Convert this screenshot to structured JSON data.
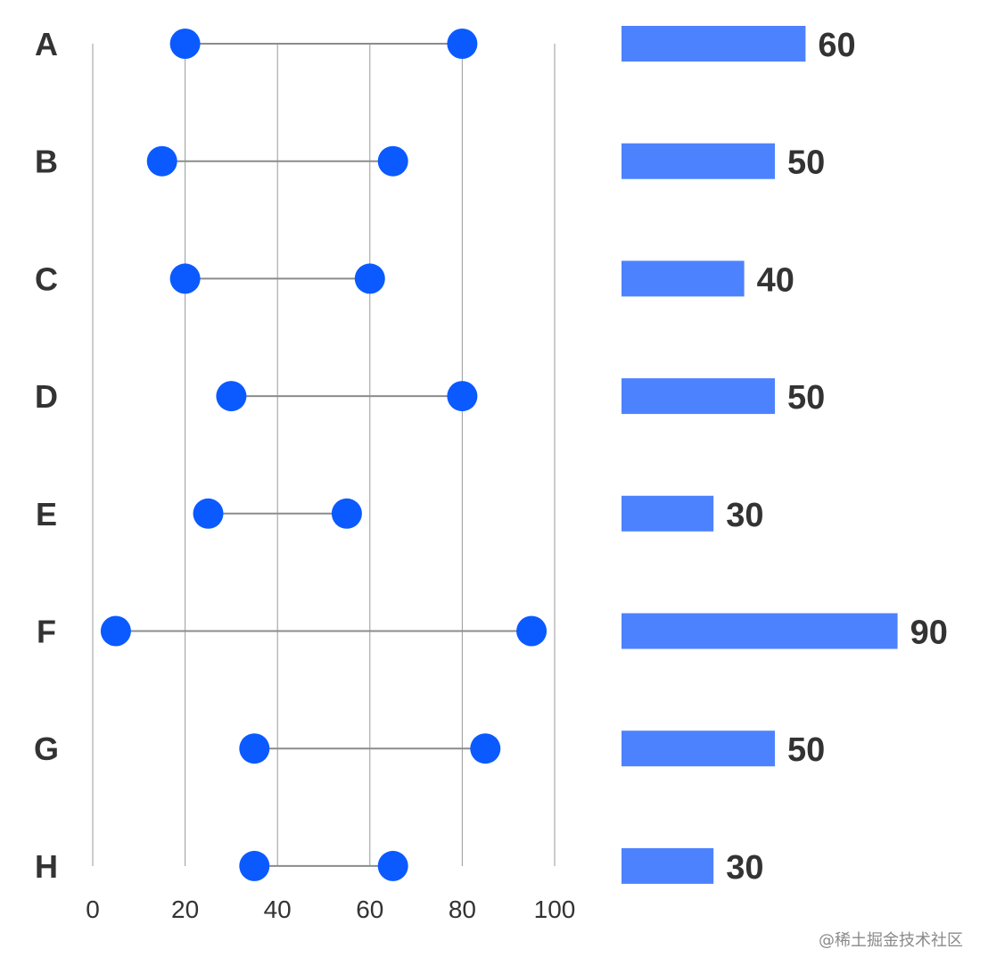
{
  "chart_data": [
    {
      "type": "dumbbell",
      "categories": [
        "A",
        "B",
        "C",
        "D",
        "E",
        "F",
        "G",
        "H"
      ],
      "series": [
        {
          "values": [
            20,
            15,
            20,
            30,
            25,
            5,
            35,
            35
          ]
        },
        {
          "values": [
            80,
            65,
            60,
            80,
            55,
            95,
            85,
            65
          ]
        }
      ],
      "x_ticks": [
        "0",
        "20",
        "40",
        "60",
        "80",
        "100"
      ],
      "xlim": [
        0,
        100
      ],
      "grid": true,
      "colors": {
        "dot": "#0a5aff",
        "connector": "#8c8c8c",
        "grid": "#9a9a9a"
      }
    },
    {
      "type": "bar",
      "orientation": "horizontal",
      "categories": [
        "A",
        "B",
        "C",
        "D",
        "E",
        "F",
        "G",
        "H"
      ],
      "values": [
        60,
        50,
        40,
        50,
        30,
        90,
        50,
        30
      ],
      "data_labels": [
        "60",
        "50",
        "40",
        "50",
        "30",
        "90",
        "50",
        "30"
      ],
      "colors": {
        "bar": "#4d82ff"
      }
    }
  ],
  "watermark": "@稀土掘金技术社区"
}
